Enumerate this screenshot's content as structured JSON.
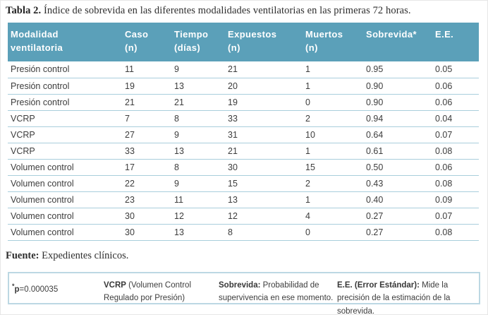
{
  "title": {
    "label": "Tabla 2.",
    "text": "Índice de sobrevida en las diferentes modalidades ventilatorias en las primeras 72 horas."
  },
  "table": {
    "columns": [
      {
        "line1": "Modalidad",
        "line2": "ventilatoria"
      },
      {
        "line1": "Caso",
        "line2": "(n)"
      },
      {
        "line1": "Tiempo",
        "line2": "(días)"
      },
      {
        "line1": "Expuestos",
        "line2": "(n)"
      },
      {
        "line1": "Muertos",
        "line2": "(n)"
      },
      {
        "line1": "Sobrevida*",
        "line2": ""
      },
      {
        "line1": "E.E.",
        "line2": ""
      }
    ],
    "rows": [
      [
        "Presión control",
        "11",
        "9",
        "21",
        "1",
        "0.95",
        "0.05"
      ],
      [
        "Presión control",
        "19",
        "13",
        "20",
        "1",
        "0.90",
        "0.06"
      ],
      [
        "Presión control",
        "21",
        "21",
        "19",
        "0",
        "0.90",
        "0.06"
      ],
      [
        "VCRP",
        "7",
        "8",
        "33",
        "2",
        "0.94",
        "0.04"
      ],
      [
        "VCRP",
        "27",
        "9",
        "31",
        "10",
        "0.64",
        "0.07"
      ],
      [
        "VCRP",
        "33",
        "13",
        "21",
        "1",
        "0.61",
        "0.08"
      ],
      [
        "Volumen control",
        "17",
        "8",
        "30",
        "15",
        "0.50",
        "0.06"
      ],
      [
        "Volumen control",
        "22",
        "9",
        "15",
        "2",
        "0.43",
        "0.08"
      ],
      [
        "Volumen control",
        "23",
        "11",
        "13",
        "1",
        "0.40",
        "0.09"
      ],
      [
        "Volumen control",
        "30",
        "12",
        "12",
        "4",
        "0.27",
        "0.07"
      ],
      [
        "Volumen control",
        "30",
        "13",
        "8",
        "0",
        "0.27",
        "0.08"
      ]
    ]
  },
  "source": {
    "label": "Fuente:",
    "text": "Expedientes clínicos."
  },
  "footnotes": [
    {
      "sup": "*",
      "bold": "p",
      "rest": "=0.000035"
    },
    {
      "sup": "",
      "bold": "VCRP",
      "rest": " (Volumen Control Regulado por Presión)"
    },
    {
      "sup": "",
      "bold": "Sobrevida:",
      "rest": " Probabilidad de supervivencia en ese momento."
    },
    {
      "sup": "",
      "bold": "E.E. (Error Estándar):",
      "rest": " Mide la precisión de la estimación de la sobrevida."
    }
  ],
  "colors": {
    "header_bg": "#5ba0b9",
    "header_text": "#ffffff",
    "row_divider": "#a9cedc",
    "body_text": "#3d3d3d",
    "footnote_border": "#bcd8e3"
  }
}
